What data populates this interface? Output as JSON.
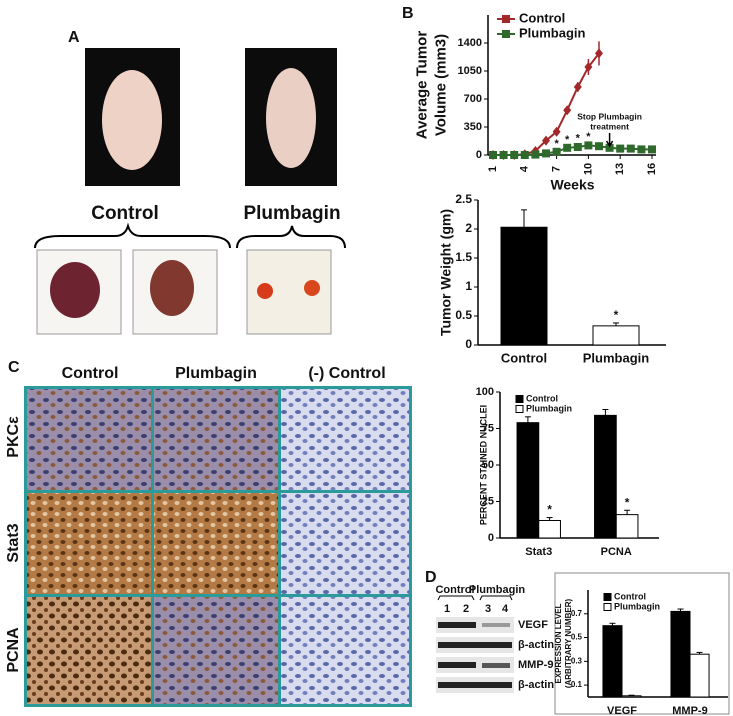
{
  "panel_labels": {
    "a": "A",
    "b": "B",
    "c": "C",
    "d": "D"
  },
  "panel_a": {
    "groups": [
      "Control",
      "Plumbagin"
    ]
  },
  "panel_c": {
    "columns": [
      "Control",
      "Plumbagin",
      "(-) Control"
    ],
    "rows": [
      "PKCε",
      "Stat3",
      "PCNA"
    ]
  },
  "panel_d": {
    "groups": [
      "Control",
      "Plumbagin"
    ],
    "lanes": [
      "1",
      "2",
      "3",
      "4"
    ],
    "bands": [
      "VEGF",
      "β-actin",
      "MMP-9",
      "β-actin"
    ]
  },
  "chart_data": [
    {
      "type": "line",
      "ylabel": [
        "Average Tumor",
        "Volume (mm3)"
      ],
      "xlabel": "Weeks",
      "x": [
        1,
        2,
        3,
        4,
        5,
        6,
        7,
        8,
        9,
        10,
        11,
        12,
        13,
        14,
        15,
        16
      ],
      "xlim": [
        1,
        16
      ],
      "xticks": [
        1,
        4,
        7,
        10,
        13,
        16
      ],
      "ylim": [
        0,
        1750
      ],
      "yticks": [
        0,
        350,
        700,
        1050,
        1400
      ],
      "legend": "top-left",
      "series": [
        {
          "name": "Control",
          "color": "#a3282b",
          "marker": "diamond",
          "values": [
            0,
            0,
            0,
            10,
            50,
            180,
            290,
            560,
            850,
            1100,
            1270,
            null,
            null,
            null,
            null,
            null
          ],
          "errors": [
            0,
            0,
            0,
            0,
            10,
            20,
            30,
            50,
            60,
            100,
            150,
            null,
            null,
            null,
            null,
            null
          ]
        },
        {
          "name": "Plumbagin",
          "color": "#2f6a2c",
          "marker": "square",
          "values": [
            0,
            0,
            0,
            0,
            5,
            20,
            40,
            90,
            100,
            120,
            110,
            90,
            80,
            80,
            70,
            70
          ],
          "errors": [
            0,
            0,
            0,
            0,
            5,
            5,
            10,
            10,
            15,
            15,
            15,
            10,
            10,
            10,
            10,
            10
          ]
        }
      ],
      "annotations": [
        {
          "text": "*",
          "x": 7
        },
        {
          "text": "*",
          "x": 8
        },
        {
          "text": "*",
          "x": 9
        },
        {
          "text": "*",
          "x": 10
        }
      ],
      "arrow": {
        "lines": [
          "Stop Plumbagin",
          "treatment"
        ],
        "x": 12
      }
    },
    {
      "type": "bar",
      "ylabel": [
        "Tumor Weight (gm)"
      ],
      "categories": [
        "Control",
        "Plumbagin"
      ],
      "series": [
        {
          "values": [
            2.03,
            0.33
          ],
          "errors": [
            0.3,
            0.05
          ],
          "colors": [
            "#000000",
            "#ffffff"
          ]
        }
      ],
      "ylim": [
        0,
        2.5
      ],
      "yticks": [
        0,
        0.5,
        1,
        1.5,
        2,
        2.5
      ],
      "annotations": [
        {
          "text": "*",
          "category": "Plumbagin"
        }
      ]
    },
    {
      "type": "bar",
      "ylabel": [
        "PERCENT STAINED NUCLEI"
      ],
      "categories": [
        "Stat3",
        "PCNA"
      ],
      "series": [
        {
          "name": "Control",
          "color": "#000000",
          "values": [
            79,
            84
          ],
          "errors": [
            4,
            4
          ]
        },
        {
          "name": "Plumbagin",
          "color": "#ffffff",
          "values": [
            12,
            16
          ],
          "errors": [
            2,
            3
          ]
        }
      ],
      "ylim": [
        0,
        100
      ],
      "yticks": [
        0,
        25,
        50,
        75,
        100
      ],
      "legend": "top-left",
      "annotations": [
        {
          "text": "*",
          "category": "Stat3",
          "series": "Plumbagin"
        },
        {
          "text": "*",
          "category": "PCNA",
          "series": "Plumbagin"
        }
      ]
    },
    {
      "type": "bar",
      "ylabel": [
        "EXPRESSION LEVEL",
        "(ARBITRARY NUMBER)"
      ],
      "categories": [
        "VEGF",
        "MMP-9"
      ],
      "series": [
        {
          "name": "Control",
          "color": "#000000",
          "values": [
            0.6,
            0.72
          ],
          "errors": [
            0.02,
            0.02
          ]
        },
        {
          "name": "Plumbagin",
          "color": "#ffffff",
          "values": [
            0.01,
            0.36
          ],
          "errors": [
            0.005,
            0.015
          ]
        }
      ],
      "ylim": [
        0,
        0.9
      ],
      "yticks": [
        0.1,
        0.3,
        0.5,
        0.7
      ],
      "legend": "top-left"
    }
  ]
}
